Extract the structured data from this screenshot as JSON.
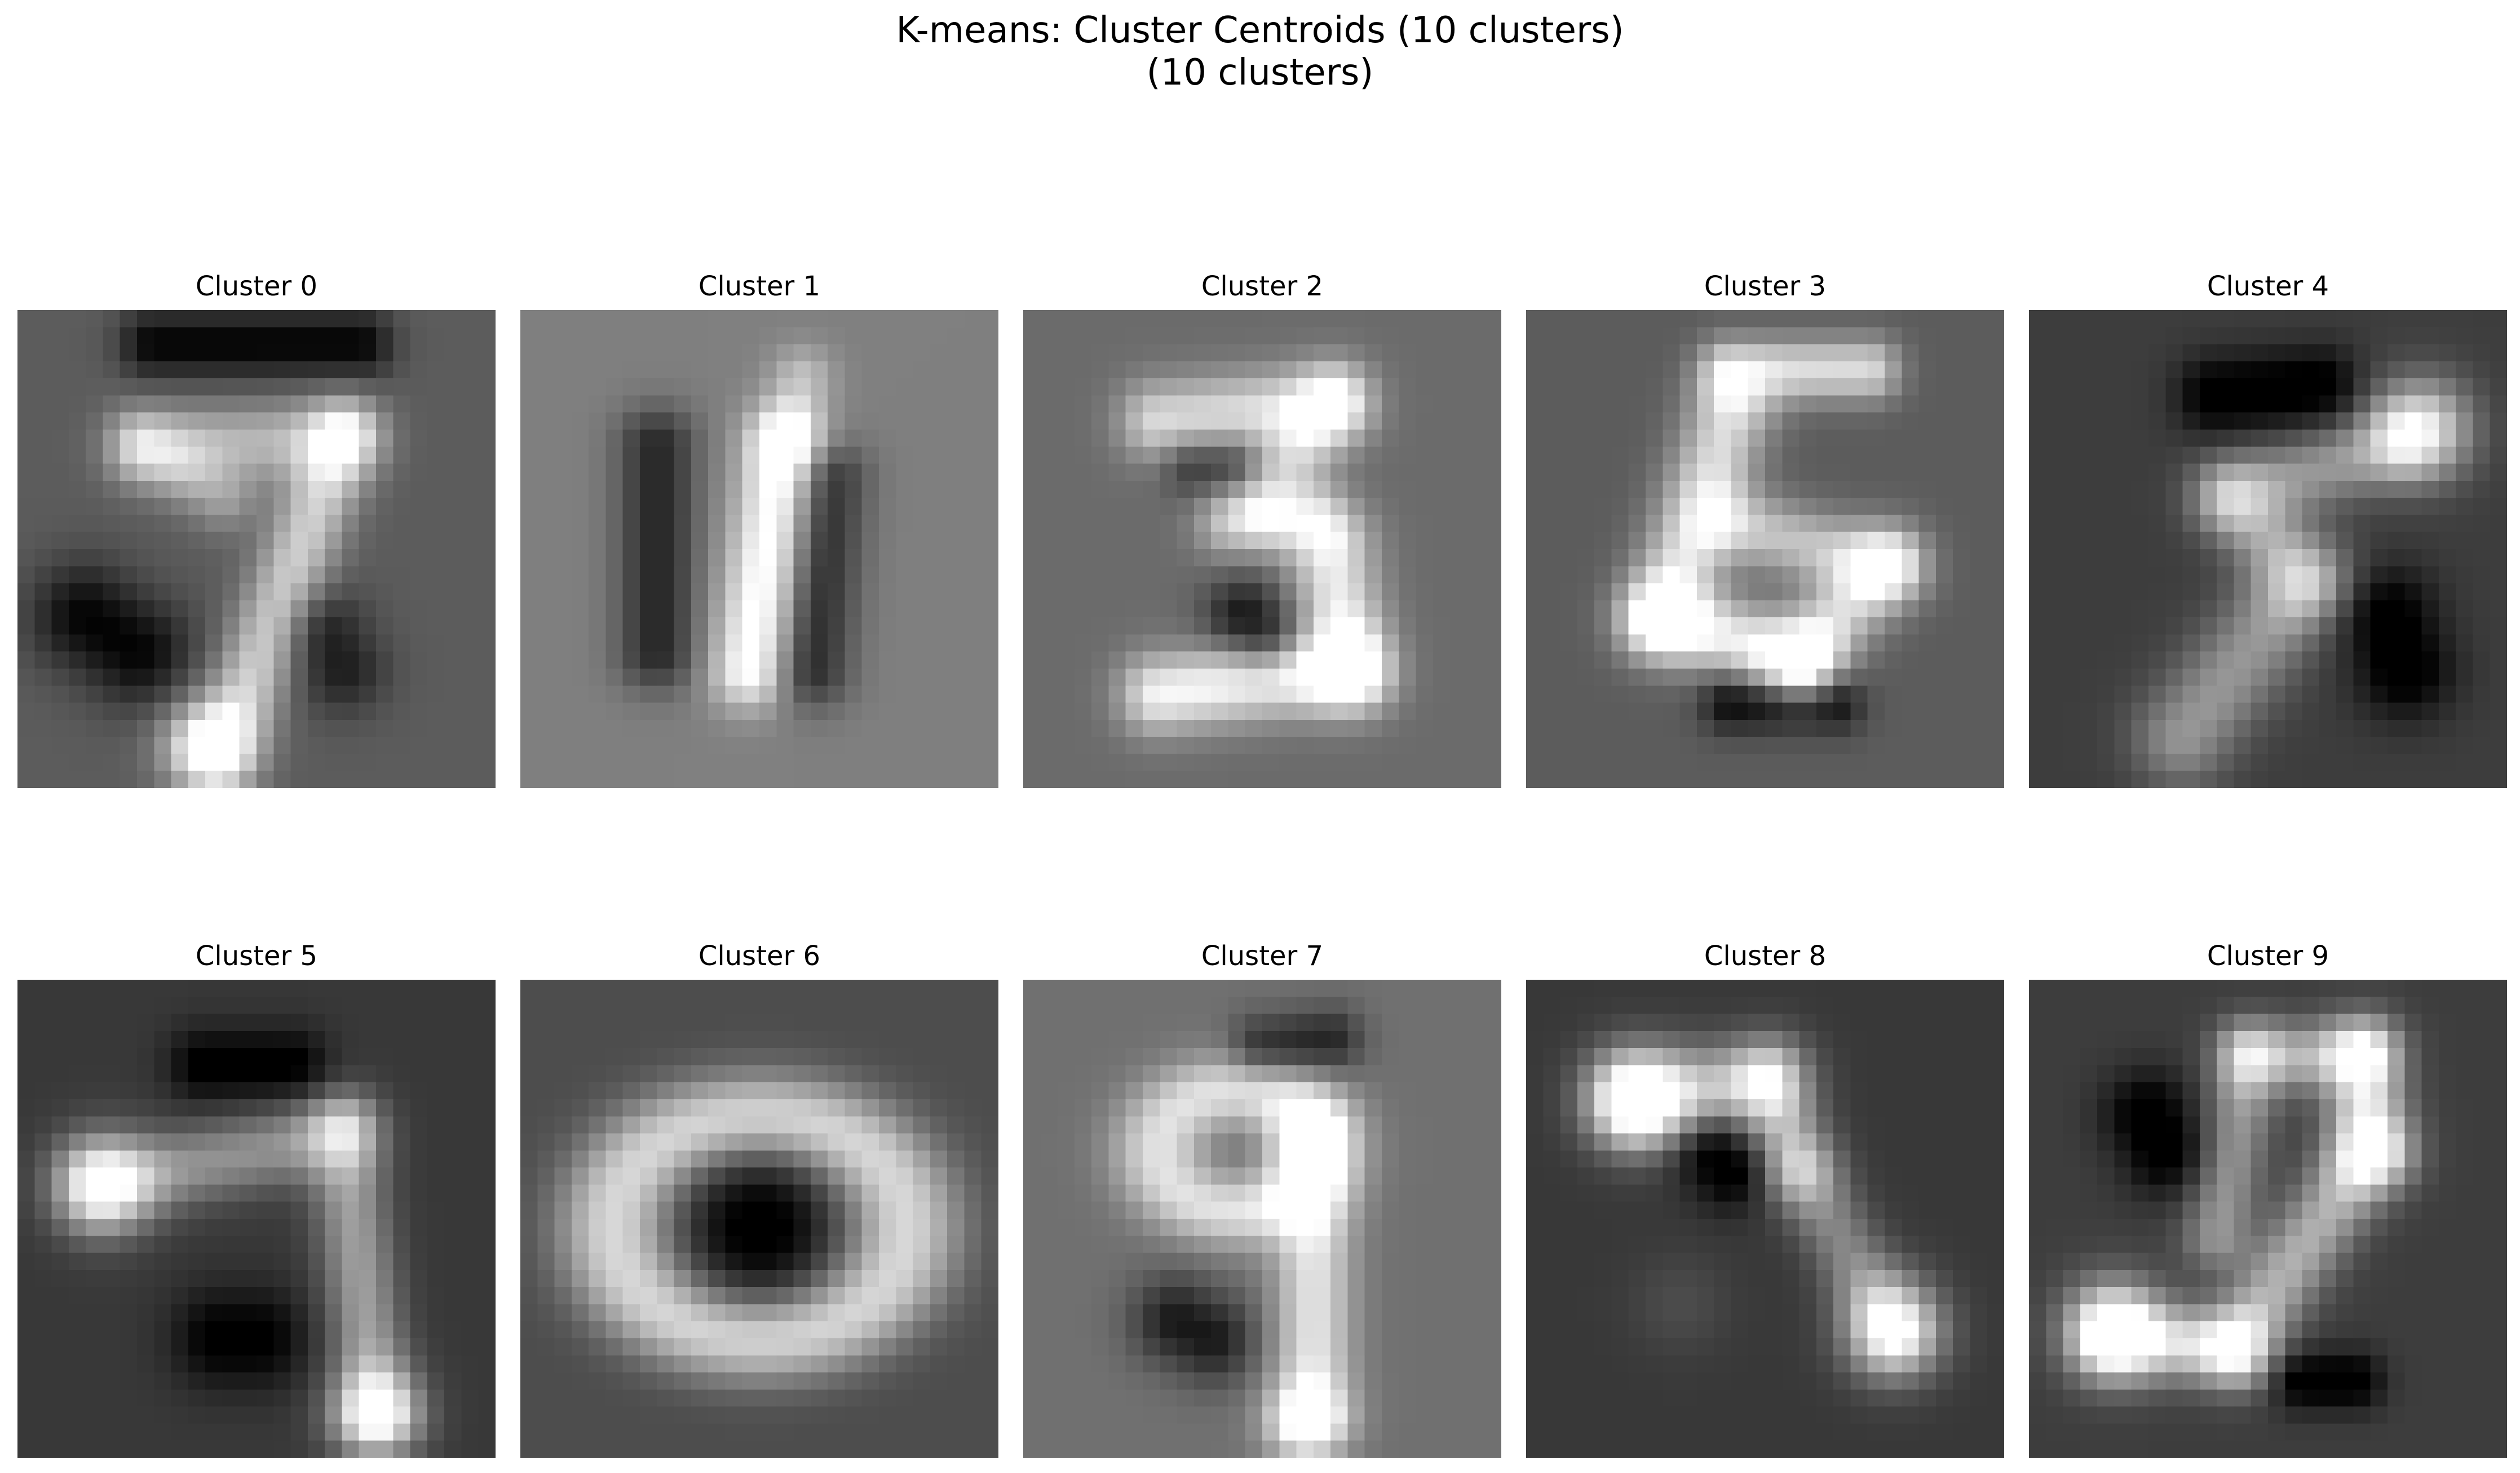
{
  "chart_data": {
    "type": "heatmap",
    "title_line1": "K-means: Cluster Centroids (10 clusters)",
    "title_line2": "(10 clusters)",
    "colormap": "gray",
    "grid": false,
    "axes_visible": false,
    "image_shape": [
      28,
      28
    ],
    "rows": 2,
    "cols": 5,
    "panels": [
      {
        "label": "Cluster 0",
        "cluster": 0,
        "background": 0.36
      },
      {
        "label": "Cluster 1",
        "cluster": 1,
        "background": 0.5
      },
      {
        "label": "Cluster 2",
        "cluster": 2,
        "background": 0.42
      },
      {
        "label": "Cluster 3",
        "cluster": 3,
        "background": 0.36
      },
      {
        "label": "Cluster 4",
        "cluster": 4,
        "background": 0.24
      },
      {
        "label": "Cluster 5",
        "cluster": 5,
        "background": 0.22
      },
      {
        "label": "Cluster 6",
        "cluster": 6,
        "background": 0.3
      },
      {
        "label": "Cluster 7",
        "cluster": 7,
        "background": 0.44
      },
      {
        "label": "Cluster 8",
        "cluster": 8,
        "background": 0.22
      },
      {
        "label": "Cluster 9",
        "cluster": 9,
        "background": 0.24
      }
    ]
  }
}
